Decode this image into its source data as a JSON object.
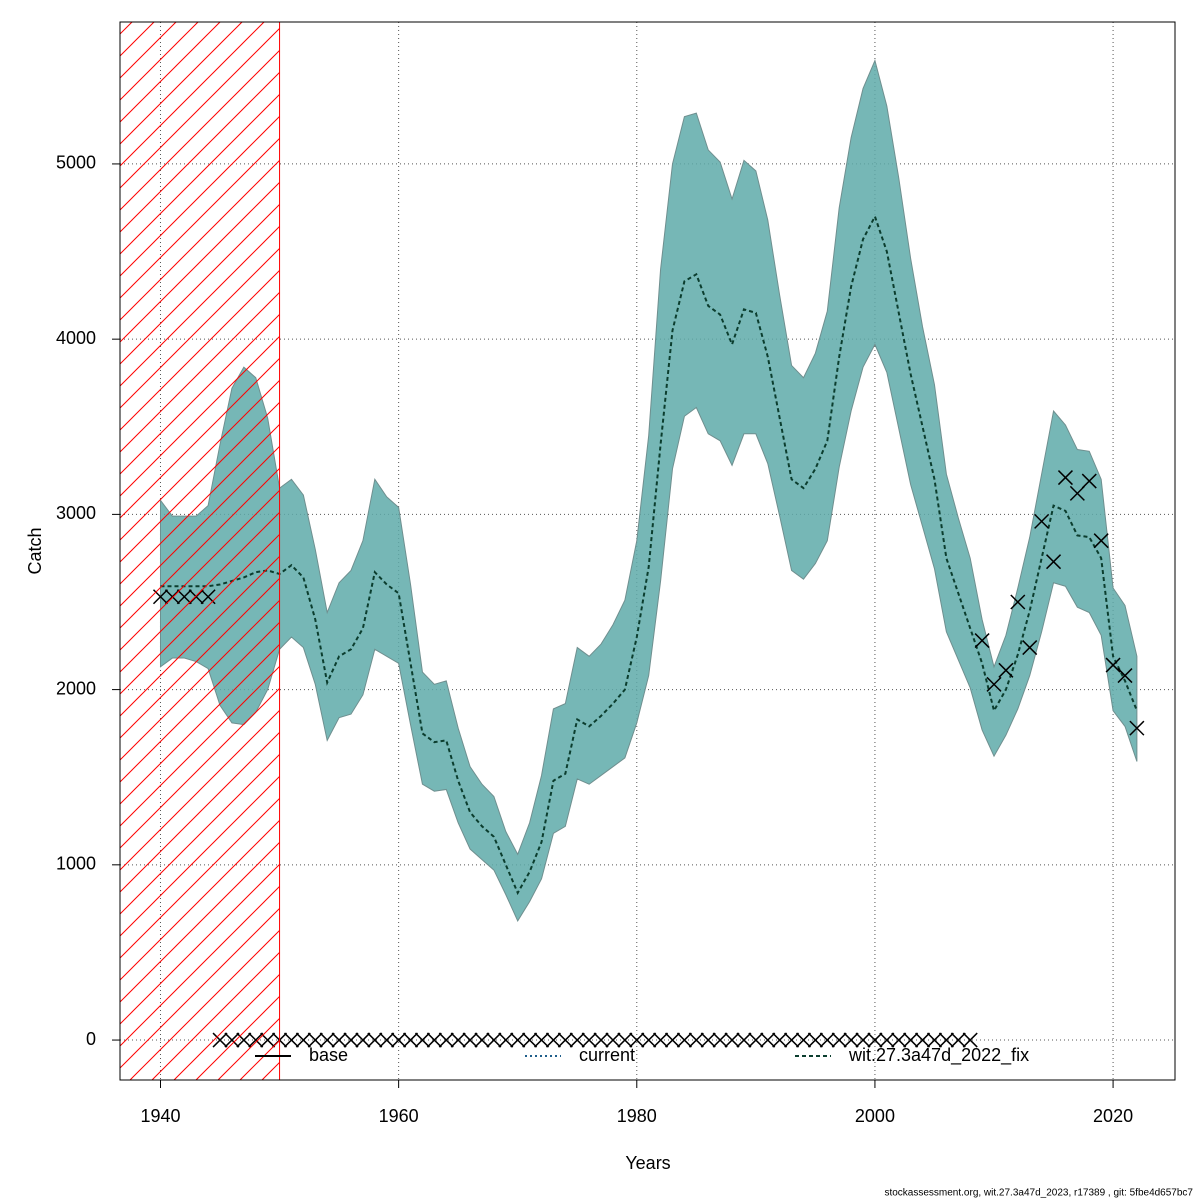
{
  "chart_data": {
    "type": "line",
    "x_label": "Years",
    "y_label": "Catch",
    "footer": "stockassessment.org, wit.27.3a47d_2023, r17389 , git: 5fbe4d657bc7",
    "xlim": [
      1936.6,
      2025.2
    ],
    "ylim": [
      -228,
      5810
    ],
    "xticks": [
      1940,
      1960,
      1980,
      2000,
      2020
    ],
    "yticks": [
      0,
      1000,
      2000,
      3000,
      4000,
      5000
    ],
    "grid": true,
    "shaded_region": [
      1936.6,
      1950
    ],
    "shaded_color": "#ff0000",
    "x": [
      1940,
      1941,
      1942,
      1943,
      1944,
      1945,
      1946,
      1947,
      1948,
      1949,
      1950,
      1951,
      1952,
      1953,
      1954,
      1955,
      1956,
      1957,
      1958,
      1959,
      1960,
      1961,
      1962,
      1963,
      1964,
      1965,
      1966,
      1967,
      1968,
      1969,
      1970,
      1971,
      1972,
      1973,
      1974,
      1975,
      1976,
      1977,
      1978,
      1979,
      1980,
      1981,
      1982,
      1983,
      1984,
      1985,
      1986,
      1987,
      1988,
      1989,
      1990,
      1991,
      1992,
      1993,
      1994,
      1995,
      1996,
      1997,
      1998,
      1999,
      2000,
      2001,
      2002,
      2003,
      2004,
      2005,
      2006,
      2007,
      2008,
      2009,
      2010,
      2011,
      2012,
      2013,
      2014,
      2015,
      2016,
      2017,
      2018,
      2019,
      2020,
      2021,
      2022
    ],
    "series": [
      {
        "name": "base",
        "color": "#000000",
        "dash": "none"
      },
      {
        "name": "current",
        "color": "#1f5f8b",
        "dash": "2,3"
      },
      {
        "name": "wit.27.3a47d_2022_fix",
        "color": "#0b3d2e",
        "dash": "4,3",
        "values": [
          2590,
          2590,
          2590,
          2590,
          2590,
          2600,
          2620,
          2640,
          2670,
          2680,
          2660,
          2710,
          2640,
          2400,
          2040,
          2190,
          2230,
          2350,
          2670,
          2600,
          2550,
          2150,
          1750,
          1700,
          1710,
          1480,
          1300,
          1220,
          1160,
          1000,
          840,
          960,
          1130,
          1480,
          1520,
          1830,
          1790,
          1850,
          1920,
          2000,
          2300,
          2700,
          3400,
          4050,
          4330,
          4370,
          4190,
          4140,
          3970,
          4170,
          4150,
          3900,
          3550,
          3200,
          3150,
          3260,
          3420,
          3900,
          4300,
          4570,
          4700,
          4500,
          4150,
          3800,
          3500,
          3200,
          2750,
          2550,
          2350,
          2150,
          1880,
          2000,
          2200,
          2450,
          2750,
          3050,
          3020,
          2880,
          2870,
          2750,
          2190,
          2050,
          1880
        ]
      }
    ],
    "band": {
      "color": "#5eaaa9",
      "upper": [
        3080,
        2990,
        2990,
        2990,
        3050,
        3400,
        3720,
        3840,
        3780,
        3550,
        3150,
        3200,
        3110,
        2800,
        2440,
        2610,
        2680,
        2850,
        3200,
        3100,
        3040,
        2600,
        2100,
        2030,
        2050,
        1780,
        1560,
        1460,
        1390,
        1190,
        1060,
        1240,
        1510,
        1890,
        1920,
        2240,
        2190,
        2260,
        2370,
        2510,
        2850,
        3450,
        4400,
        5000,
        5270,
        5290,
        5080,
        5010,
        4800,
        5020,
        4960,
        4680,
        4250,
        3850,
        3780,
        3920,
        4160,
        4750,
        5150,
        5430,
        5590,
        5330,
        4920,
        4460,
        4070,
        3740,
        3230,
        2980,
        2750,
        2400,
        2130,
        2310,
        2580,
        2870,
        3230,
        3590,
        3510,
        3370,
        3360,
        3200,
        2580,
        2480,
        2190
      ],
      "lower": [
        2130,
        2180,
        2180,
        2160,
        2120,
        1910,
        1810,
        1800,
        1870,
        2000,
        2230,
        2300,
        2240,
        2030,
        1710,
        1840,
        1860,
        1970,
        2230,
        2190,
        2150,
        1800,
        1460,
        1420,
        1430,
        1240,
        1090,
        1030,
        970,
        830,
        680,
        790,
        920,
        1180,
        1220,
        1490,
        1460,
        1510,
        1560,
        1610,
        1810,
        2080,
        2620,
        3260,
        3560,
        3610,
        3460,
        3420,
        3280,
        3460,
        3460,
        3290,
        2990,
        2680,
        2630,
        2720,
        2850,
        3270,
        3590,
        3840,
        3970,
        3810,
        3490,
        3170,
        2930,
        2690,
        2330,
        2170,
        2010,
        1770,
        1620,
        1740,
        1890,
        2080,
        2330,
        2610,
        2590,
        2470,
        2440,
        2310,
        1880,
        1790,
        1590
      ]
    },
    "observations": {
      "color": "#000000",
      "values": [
        2530,
        2530,
        2530,
        2530,
        2530,
        0,
        0,
        0,
        0,
        0,
        0,
        0,
        0,
        0,
        0,
        0,
        0,
        0,
        0,
        0,
        0,
        0,
        0,
        0,
        0,
        0,
        0,
        0,
        0,
        0,
        0,
        0,
        0,
        0,
        0,
        0,
        0,
        0,
        0,
        0,
        0,
        0,
        0,
        0,
        0,
        0,
        0,
        0,
        0,
        0,
        0,
        0,
        0,
        0,
        0,
        0,
        0,
        0,
        0,
        0,
        0,
        0,
        0,
        0,
        0,
        0,
        0,
        0,
        0,
        2280,
        2030,
        2110,
        2500,
        2240,
        2960,
        2730,
        3210,
        3120,
        3190,
        2850,
        2140,
        2080,
        1780
      ]
    }
  }
}
